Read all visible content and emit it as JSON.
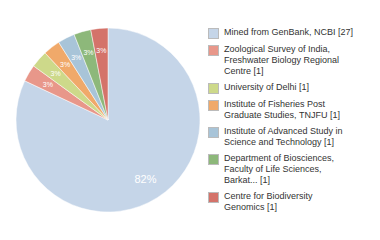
{
  "chart_data": {
    "type": "pie",
    "categories": [
      "Mined from GenBank, NCBI [27]",
      "Zoological Survey of India,\nFreshwater Biology Regional\nCentre [1]",
      "University of Delhi [1]",
      "Institute of Fisheries Post\nGraduate Studies, TNJFU [1]",
      "Institute of Advanced Study in\nScience and Technology [1]",
      "Department of Biosciences,\nFaculty of Life Sciences,\nBarkat... [1]",
      "Centre for Biodiversity\nGenomics [1]"
    ],
    "values": [
      82,
      3,
      3,
      3,
      3,
      3,
      3
    ],
    "value_labels": [
      "82%",
      "3%",
      "3%",
      "3%",
      "3%",
      "3%",
      "3%"
    ],
    "colors": [
      "#c5d5e8",
      "#e8978a",
      "#cdd98a",
      "#f0a96a",
      "#a8c4d8",
      "#8db87a",
      "#d4736a"
    ],
    "data_labels": true,
    "legend": "right"
  }
}
